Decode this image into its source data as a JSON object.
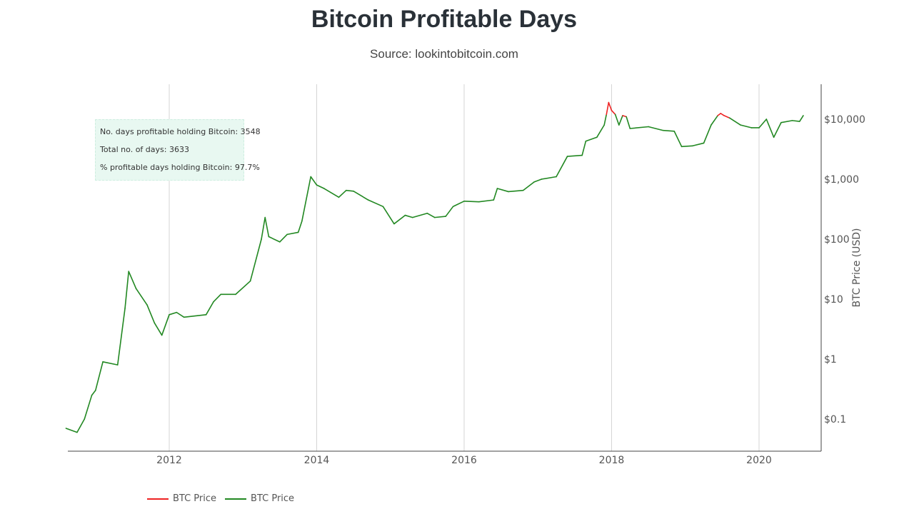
{
  "chart_data": {
    "type": "line",
    "title": "Bitcoin Profitable Days",
    "subtitle": "Source: lookintobitcoin.com",
    "ylabel": "BTC Price (USD)",
    "y_scale": "log",
    "ylim": [
      0.035,
      40000
    ],
    "xlim": [
      2010.6,
      2020.85
    ],
    "x_ticks": [
      2012,
      2014,
      2016,
      2018,
      2020
    ],
    "x_tick_labels": [
      "2012",
      "2014",
      "2016",
      "2018",
      "2020"
    ],
    "y_ticks": [
      0.1,
      1,
      10,
      100,
      1000,
      10000
    ],
    "y_tick_labels": [
      "$0.1",
      "$1",
      "$10",
      "$100",
      "$1,000",
      "$10,000"
    ],
    "grid": "vertical",
    "legend_position": "bottom-left",
    "series": [
      {
        "name": "BTC Price",
        "color": "#ee2222",
        "meaning": "price above current"
      },
      {
        "name": "BTC Price",
        "color": "#228822",
        "meaning": "price below current"
      }
    ],
    "points": [
      [
        2010.6,
        0.07
      ],
      [
        2010.75,
        0.06
      ],
      [
        2010.85,
        0.1
      ],
      [
        2010.95,
        0.25
      ],
      [
        2011.0,
        0.3
      ],
      [
        2011.1,
        0.9
      ],
      [
        2011.3,
        0.8
      ],
      [
        2011.4,
        7
      ],
      [
        2011.45,
        29
      ],
      [
        2011.55,
        15
      ],
      [
        2011.7,
        8
      ],
      [
        2011.8,
        4
      ],
      [
        2011.9,
        2.5
      ],
      [
        2012.0,
        5.5
      ],
      [
        2012.1,
        6
      ],
      [
        2012.2,
        5
      ],
      [
        2012.5,
        5.5
      ],
      [
        2012.6,
        9
      ],
      [
        2012.7,
        12
      ],
      [
        2012.9,
        12
      ],
      [
        2013.1,
        20
      ],
      [
        2013.25,
        100
      ],
      [
        2013.3,
        230
      ],
      [
        2013.35,
        110
      ],
      [
        2013.5,
        90
      ],
      [
        2013.6,
        120
      ],
      [
        2013.75,
        130
      ],
      [
        2013.8,
        200
      ],
      [
        2013.92,
        1100
      ],
      [
        2014.0,
        800
      ],
      [
        2014.1,
        700
      ],
      [
        2014.3,
        500
      ],
      [
        2014.4,
        650
      ],
      [
        2014.5,
        630
      ],
      [
        2014.7,
        450
      ],
      [
        2014.9,
        350
      ],
      [
        2015.05,
        180
      ],
      [
        2015.2,
        250
      ],
      [
        2015.3,
        230
      ],
      [
        2015.5,
        270
      ],
      [
        2015.6,
        230
      ],
      [
        2015.75,
        240
      ],
      [
        2015.85,
        350
      ],
      [
        2016.0,
        430
      ],
      [
        2016.2,
        420
      ],
      [
        2016.4,
        450
      ],
      [
        2016.45,
        700
      ],
      [
        2016.6,
        620
      ],
      [
        2016.8,
        650
      ],
      [
        2016.95,
        900
      ],
      [
        2017.05,
        1000
      ],
      [
        2017.25,
        1100
      ],
      [
        2017.4,
        2400
      ],
      [
        2017.6,
        2500
      ],
      [
        2017.65,
        4300
      ],
      [
        2017.8,
        5000
      ],
      [
        2017.9,
        8000
      ],
      [
        2017.93,
        12000
      ],
      [
        2017.96,
        19000
      ],
      [
        2018.0,
        14000
      ],
      [
        2018.05,
        12000
      ],
      [
        2018.1,
        8000
      ],
      [
        2018.15,
        11500
      ],
      [
        2018.2,
        11000
      ],
      [
        2018.25,
        7000
      ],
      [
        2018.5,
        7500
      ],
      [
        2018.7,
        6500
      ],
      [
        2018.85,
        6300
      ],
      [
        2018.95,
        3500
      ],
      [
        2019.1,
        3600
      ],
      [
        2019.25,
        4000
      ],
      [
        2019.35,
        8000
      ],
      [
        2019.44,
        11500
      ],
      [
        2019.48,
        12500
      ],
      [
        2019.52,
        11600
      ],
      [
        2019.6,
        10500
      ],
      [
        2019.75,
        8000
      ],
      [
        2019.9,
        7200
      ],
      [
        2020.0,
        7200
      ],
      [
        2020.1,
        10000
      ],
      [
        2020.2,
        5000
      ],
      [
        2020.3,
        8800
      ],
      [
        2020.45,
        9500
      ],
      [
        2020.55,
        9200
      ],
      [
        2020.6,
        11500
      ]
    ]
  },
  "annotation": {
    "line1": "No. days profitable holding Bitcoin: 3548",
    "line2": "Total no. of days: 3633",
    "line3": "% profitable days holding Bitcoin: 97.7%"
  },
  "legend": [
    {
      "label": "BTC Price",
      "color": "#ee2222"
    },
    {
      "label": "BTC Price",
      "color": "#228822"
    }
  ]
}
